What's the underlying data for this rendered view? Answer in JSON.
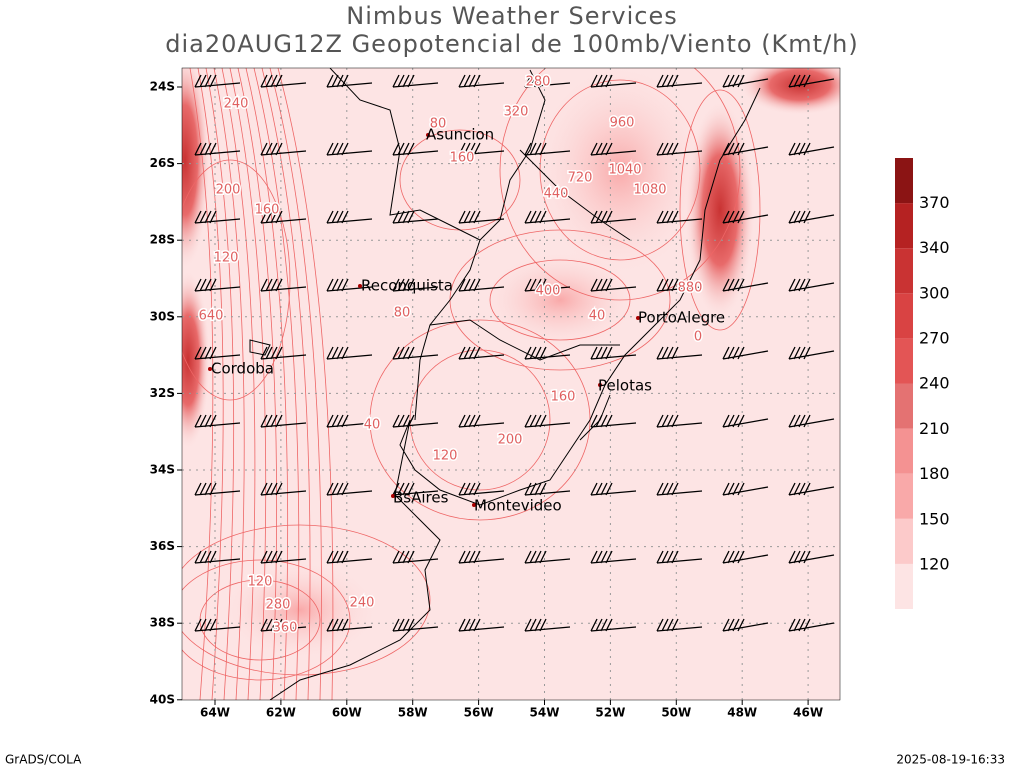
{
  "header": {
    "title": "Nimbus Weather Services",
    "subtitle": "dia20AUG12Z Geopotencial de 100mb/Viento (Kmt/h)"
  },
  "map": {
    "lat_labels": [
      "24S",
      "26S",
      "28S",
      "30S",
      "32S",
      "34S",
      "36S",
      "38S",
      "40S"
    ],
    "lon_labels": [
      "64W",
      "62W",
      "60W",
      "58W",
      "56W",
      "54W",
      "52W",
      "50W",
      "48W",
      "46W"
    ],
    "cities": [
      "Asuncion",
      "Reconquista",
      "Cordoba",
      "PortoAlegre",
      "Pelotas",
      "BsAires",
      "Montevideo"
    ],
    "contour_labels": [
      "240",
      "160",
      "200",
      "120",
      "80",
      "80",
      "40",
      "280",
      "320",
      "400",
      "720",
      "960",
      "1040",
      "1080",
      "880",
      "640",
      "440",
      "160",
      "120",
      "200",
      "240",
      "360",
      "280",
      "120",
      "160",
      "40",
      "0"
    ]
  },
  "colorbar": {
    "labels": [
      "120",
      "150",
      "180",
      "210",
      "240",
      "270",
      "300",
      "340",
      "370"
    ]
  },
  "footer": {
    "left": "GrADS/COLA",
    "right": "2025-08-19-16:33"
  }
}
